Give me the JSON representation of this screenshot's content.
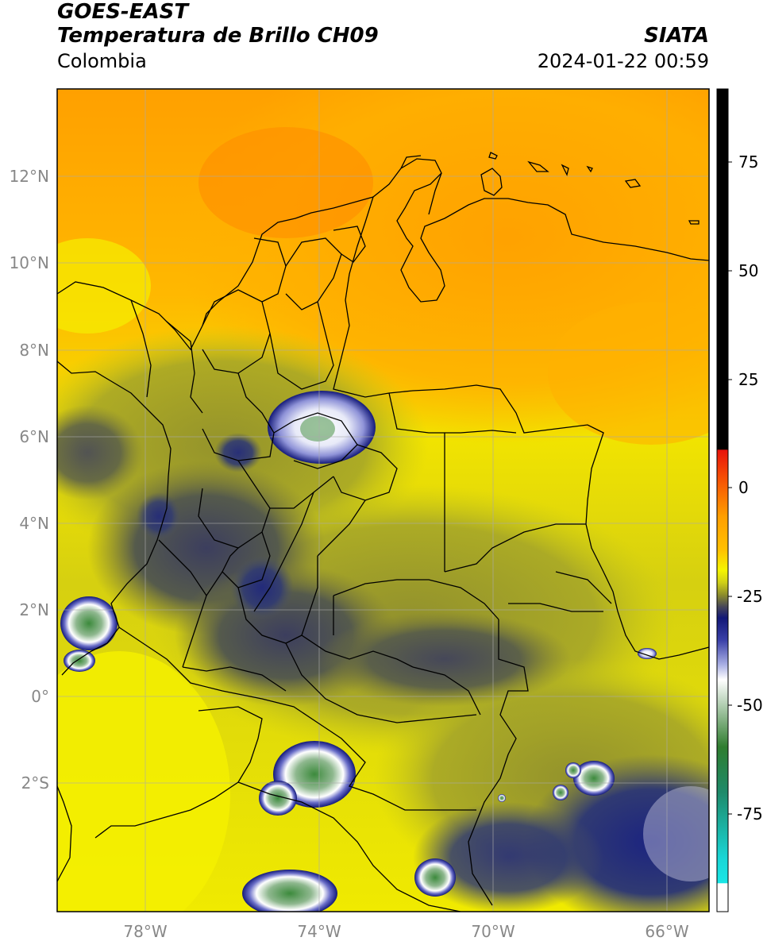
{
  "header": {
    "satellite": "GOES-EAST",
    "product": "Temperatura de Brillo CH09",
    "region": "Colombia",
    "organization": "SIATA",
    "timestamp": "2024-01-22 00:59"
  },
  "map": {
    "lon_labels": [
      "78°W",
      "74°W",
      "70°W",
      "66°W"
    ],
    "lat_labels": [
      "12°N",
      "10°N",
      "8°N",
      "6°N",
      "4°N",
      "2°N",
      "0°",
      "2°S"
    ]
  },
  "colorbar": {
    "ticks": [
      "75",
      "50",
      "25",
      "0",
      "-25",
      "-50",
      "-75"
    ],
    "colors": {
      "black": "#000000",
      "red": "#e8130a",
      "orange": "#ff9f00",
      "yellow": "#f5f500",
      "olive": "#8c8c2c",
      "gray": "#44445a",
      "navy": "#121877",
      "white": "#ffffff",
      "green": "#2f7d2f",
      "cyan": "#19d6d6"
    }
  }
}
